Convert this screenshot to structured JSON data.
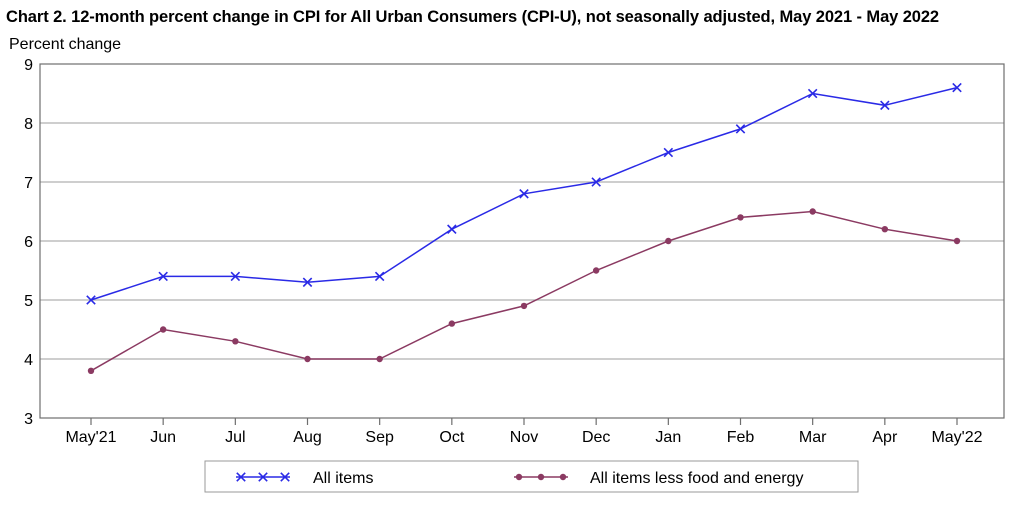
{
  "chart_data": {
    "type": "line",
    "title": "Chart 2. 12-month percent change in CPI for All Urban Consumers (CPI-U), not seasonally adjusted, May 2021 - May 2022",
    "ylabel": "Percent change",
    "xlabel": "",
    "categories": [
      "May'21",
      "Jun",
      "Jul",
      "Aug",
      "Sep",
      "Oct",
      "Nov",
      "Dec",
      "Jan",
      "Feb",
      "Mar",
      "Apr",
      "May'22"
    ],
    "ylim": [
      3,
      9
    ],
    "yticks": [
      3,
      4,
      5,
      6,
      7,
      8,
      9
    ],
    "grid": true,
    "legend_position": "bottom",
    "series": [
      {
        "name": "All items",
        "color": "#2a2ae6",
        "marker": "x",
        "values": [
          5.0,
          5.4,
          5.4,
          5.3,
          5.4,
          6.2,
          6.8,
          7.0,
          7.5,
          7.9,
          8.5,
          8.3,
          8.6
        ]
      },
      {
        "name": "All items less food and energy",
        "color": "#8b3a62",
        "marker": "circle",
        "values": [
          3.8,
          4.5,
          4.3,
          4.0,
          4.0,
          4.6,
          4.9,
          5.5,
          6.0,
          6.4,
          6.5,
          6.2,
          6.0
        ]
      }
    ]
  }
}
